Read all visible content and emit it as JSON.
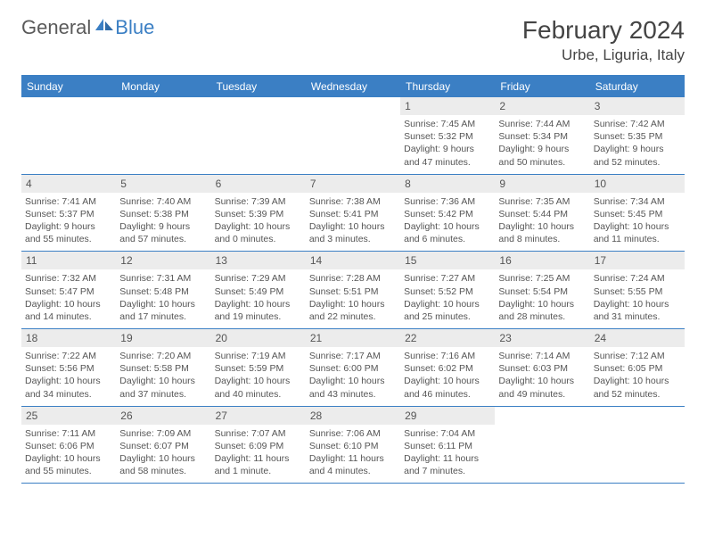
{
  "brand": {
    "text_general": "General",
    "text_blue": "Blue"
  },
  "title": {
    "month": "February 2024",
    "location": "Urbe, Liguria, Italy"
  },
  "colors": {
    "accent": "#3b7fc4",
    "header_stripe_bg": "#ececec",
    "text_body": "#555555",
    "text_title": "#444444",
    "background": "#ffffff"
  },
  "weekdays": [
    "Sunday",
    "Monday",
    "Tuesday",
    "Wednesday",
    "Thursday",
    "Friday",
    "Saturday"
  ],
  "calendar": {
    "type": "table",
    "start_weekday_index": 4,
    "days": [
      {
        "n": "1",
        "sunrise": "Sunrise: 7:45 AM",
        "sunset": "Sunset: 5:32 PM",
        "d1": "Daylight: 9 hours",
        "d2": "and 47 minutes."
      },
      {
        "n": "2",
        "sunrise": "Sunrise: 7:44 AM",
        "sunset": "Sunset: 5:34 PM",
        "d1": "Daylight: 9 hours",
        "d2": "and 50 minutes."
      },
      {
        "n": "3",
        "sunrise": "Sunrise: 7:42 AM",
        "sunset": "Sunset: 5:35 PM",
        "d1": "Daylight: 9 hours",
        "d2": "and 52 minutes."
      },
      {
        "n": "4",
        "sunrise": "Sunrise: 7:41 AM",
        "sunset": "Sunset: 5:37 PM",
        "d1": "Daylight: 9 hours",
        "d2": "and 55 minutes."
      },
      {
        "n": "5",
        "sunrise": "Sunrise: 7:40 AM",
        "sunset": "Sunset: 5:38 PM",
        "d1": "Daylight: 9 hours",
        "d2": "and 57 minutes."
      },
      {
        "n": "6",
        "sunrise": "Sunrise: 7:39 AM",
        "sunset": "Sunset: 5:39 PM",
        "d1": "Daylight: 10 hours",
        "d2": "and 0 minutes."
      },
      {
        "n": "7",
        "sunrise": "Sunrise: 7:38 AM",
        "sunset": "Sunset: 5:41 PM",
        "d1": "Daylight: 10 hours",
        "d2": "and 3 minutes."
      },
      {
        "n": "8",
        "sunrise": "Sunrise: 7:36 AM",
        "sunset": "Sunset: 5:42 PM",
        "d1": "Daylight: 10 hours",
        "d2": "and 6 minutes."
      },
      {
        "n": "9",
        "sunrise": "Sunrise: 7:35 AM",
        "sunset": "Sunset: 5:44 PM",
        "d1": "Daylight: 10 hours",
        "d2": "and 8 minutes."
      },
      {
        "n": "10",
        "sunrise": "Sunrise: 7:34 AM",
        "sunset": "Sunset: 5:45 PM",
        "d1": "Daylight: 10 hours",
        "d2": "and 11 minutes."
      },
      {
        "n": "11",
        "sunrise": "Sunrise: 7:32 AM",
        "sunset": "Sunset: 5:47 PM",
        "d1": "Daylight: 10 hours",
        "d2": "and 14 minutes."
      },
      {
        "n": "12",
        "sunrise": "Sunrise: 7:31 AM",
        "sunset": "Sunset: 5:48 PM",
        "d1": "Daylight: 10 hours",
        "d2": "and 17 minutes."
      },
      {
        "n": "13",
        "sunrise": "Sunrise: 7:29 AM",
        "sunset": "Sunset: 5:49 PM",
        "d1": "Daylight: 10 hours",
        "d2": "and 19 minutes."
      },
      {
        "n": "14",
        "sunrise": "Sunrise: 7:28 AM",
        "sunset": "Sunset: 5:51 PM",
        "d1": "Daylight: 10 hours",
        "d2": "and 22 minutes."
      },
      {
        "n": "15",
        "sunrise": "Sunrise: 7:27 AM",
        "sunset": "Sunset: 5:52 PM",
        "d1": "Daylight: 10 hours",
        "d2": "and 25 minutes."
      },
      {
        "n": "16",
        "sunrise": "Sunrise: 7:25 AM",
        "sunset": "Sunset: 5:54 PM",
        "d1": "Daylight: 10 hours",
        "d2": "and 28 minutes."
      },
      {
        "n": "17",
        "sunrise": "Sunrise: 7:24 AM",
        "sunset": "Sunset: 5:55 PM",
        "d1": "Daylight: 10 hours",
        "d2": "and 31 minutes."
      },
      {
        "n": "18",
        "sunrise": "Sunrise: 7:22 AM",
        "sunset": "Sunset: 5:56 PM",
        "d1": "Daylight: 10 hours",
        "d2": "and 34 minutes."
      },
      {
        "n": "19",
        "sunrise": "Sunrise: 7:20 AM",
        "sunset": "Sunset: 5:58 PM",
        "d1": "Daylight: 10 hours",
        "d2": "and 37 minutes."
      },
      {
        "n": "20",
        "sunrise": "Sunrise: 7:19 AM",
        "sunset": "Sunset: 5:59 PM",
        "d1": "Daylight: 10 hours",
        "d2": "and 40 minutes."
      },
      {
        "n": "21",
        "sunrise": "Sunrise: 7:17 AM",
        "sunset": "Sunset: 6:00 PM",
        "d1": "Daylight: 10 hours",
        "d2": "and 43 minutes."
      },
      {
        "n": "22",
        "sunrise": "Sunrise: 7:16 AM",
        "sunset": "Sunset: 6:02 PM",
        "d1": "Daylight: 10 hours",
        "d2": "and 46 minutes."
      },
      {
        "n": "23",
        "sunrise": "Sunrise: 7:14 AM",
        "sunset": "Sunset: 6:03 PM",
        "d1": "Daylight: 10 hours",
        "d2": "and 49 minutes."
      },
      {
        "n": "24",
        "sunrise": "Sunrise: 7:12 AM",
        "sunset": "Sunset: 6:05 PM",
        "d1": "Daylight: 10 hours",
        "d2": "and 52 minutes."
      },
      {
        "n": "25",
        "sunrise": "Sunrise: 7:11 AM",
        "sunset": "Sunset: 6:06 PM",
        "d1": "Daylight: 10 hours",
        "d2": "and 55 minutes."
      },
      {
        "n": "26",
        "sunrise": "Sunrise: 7:09 AM",
        "sunset": "Sunset: 6:07 PM",
        "d1": "Daylight: 10 hours",
        "d2": "and 58 minutes."
      },
      {
        "n": "27",
        "sunrise": "Sunrise: 7:07 AM",
        "sunset": "Sunset: 6:09 PM",
        "d1": "Daylight: 11 hours",
        "d2": "and 1 minute."
      },
      {
        "n": "28",
        "sunrise": "Sunrise: 7:06 AM",
        "sunset": "Sunset: 6:10 PM",
        "d1": "Daylight: 11 hours",
        "d2": "and 4 minutes."
      },
      {
        "n": "29",
        "sunrise": "Sunrise: 7:04 AM",
        "sunset": "Sunset: 6:11 PM",
        "d1": "Daylight: 11 hours",
        "d2": "and 7 minutes."
      }
    ]
  }
}
